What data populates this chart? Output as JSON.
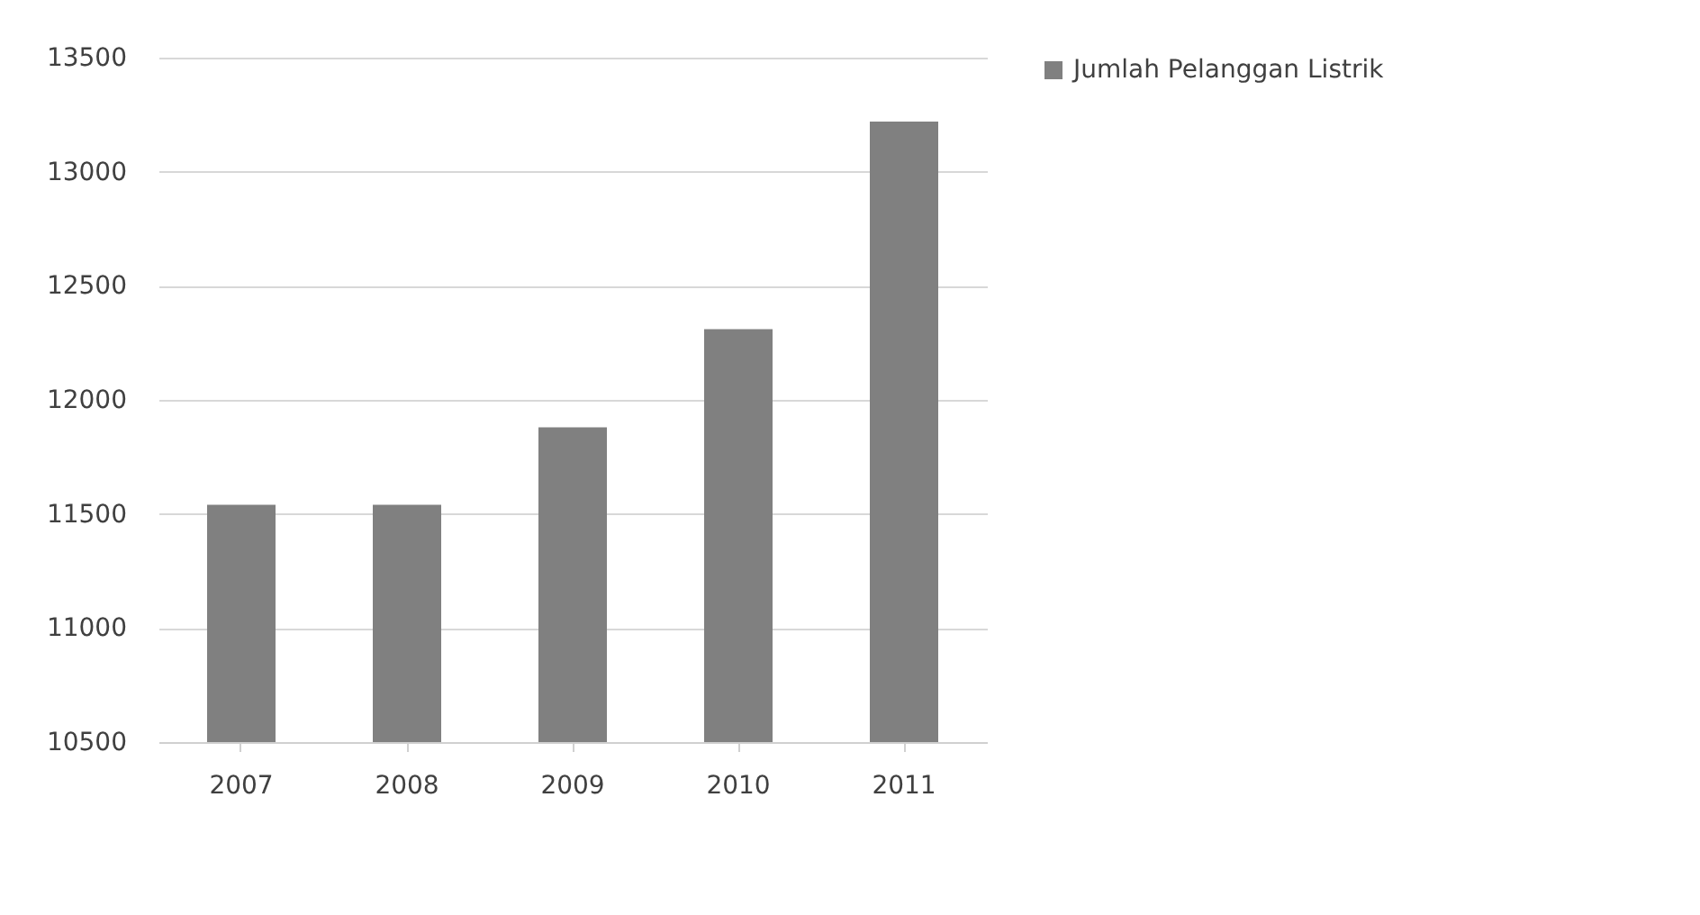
{
  "chart_data": {
    "type": "bar",
    "categories": [
      "2007",
      "2008",
      "2009",
      "2010",
      "2011"
    ],
    "series": [
      {
        "name": "Jumlah Pelanggan Listrik",
        "color": "#808080",
        "values": [
          11540,
          11540,
          11880,
          12310,
          13220
        ]
      }
    ],
    "ylim": [
      10500,
      13500
    ],
    "yticks": [
      10500,
      11000,
      11500,
      12000,
      12500,
      13000,
      13500
    ],
    "grid": "y",
    "legend": "right"
  }
}
